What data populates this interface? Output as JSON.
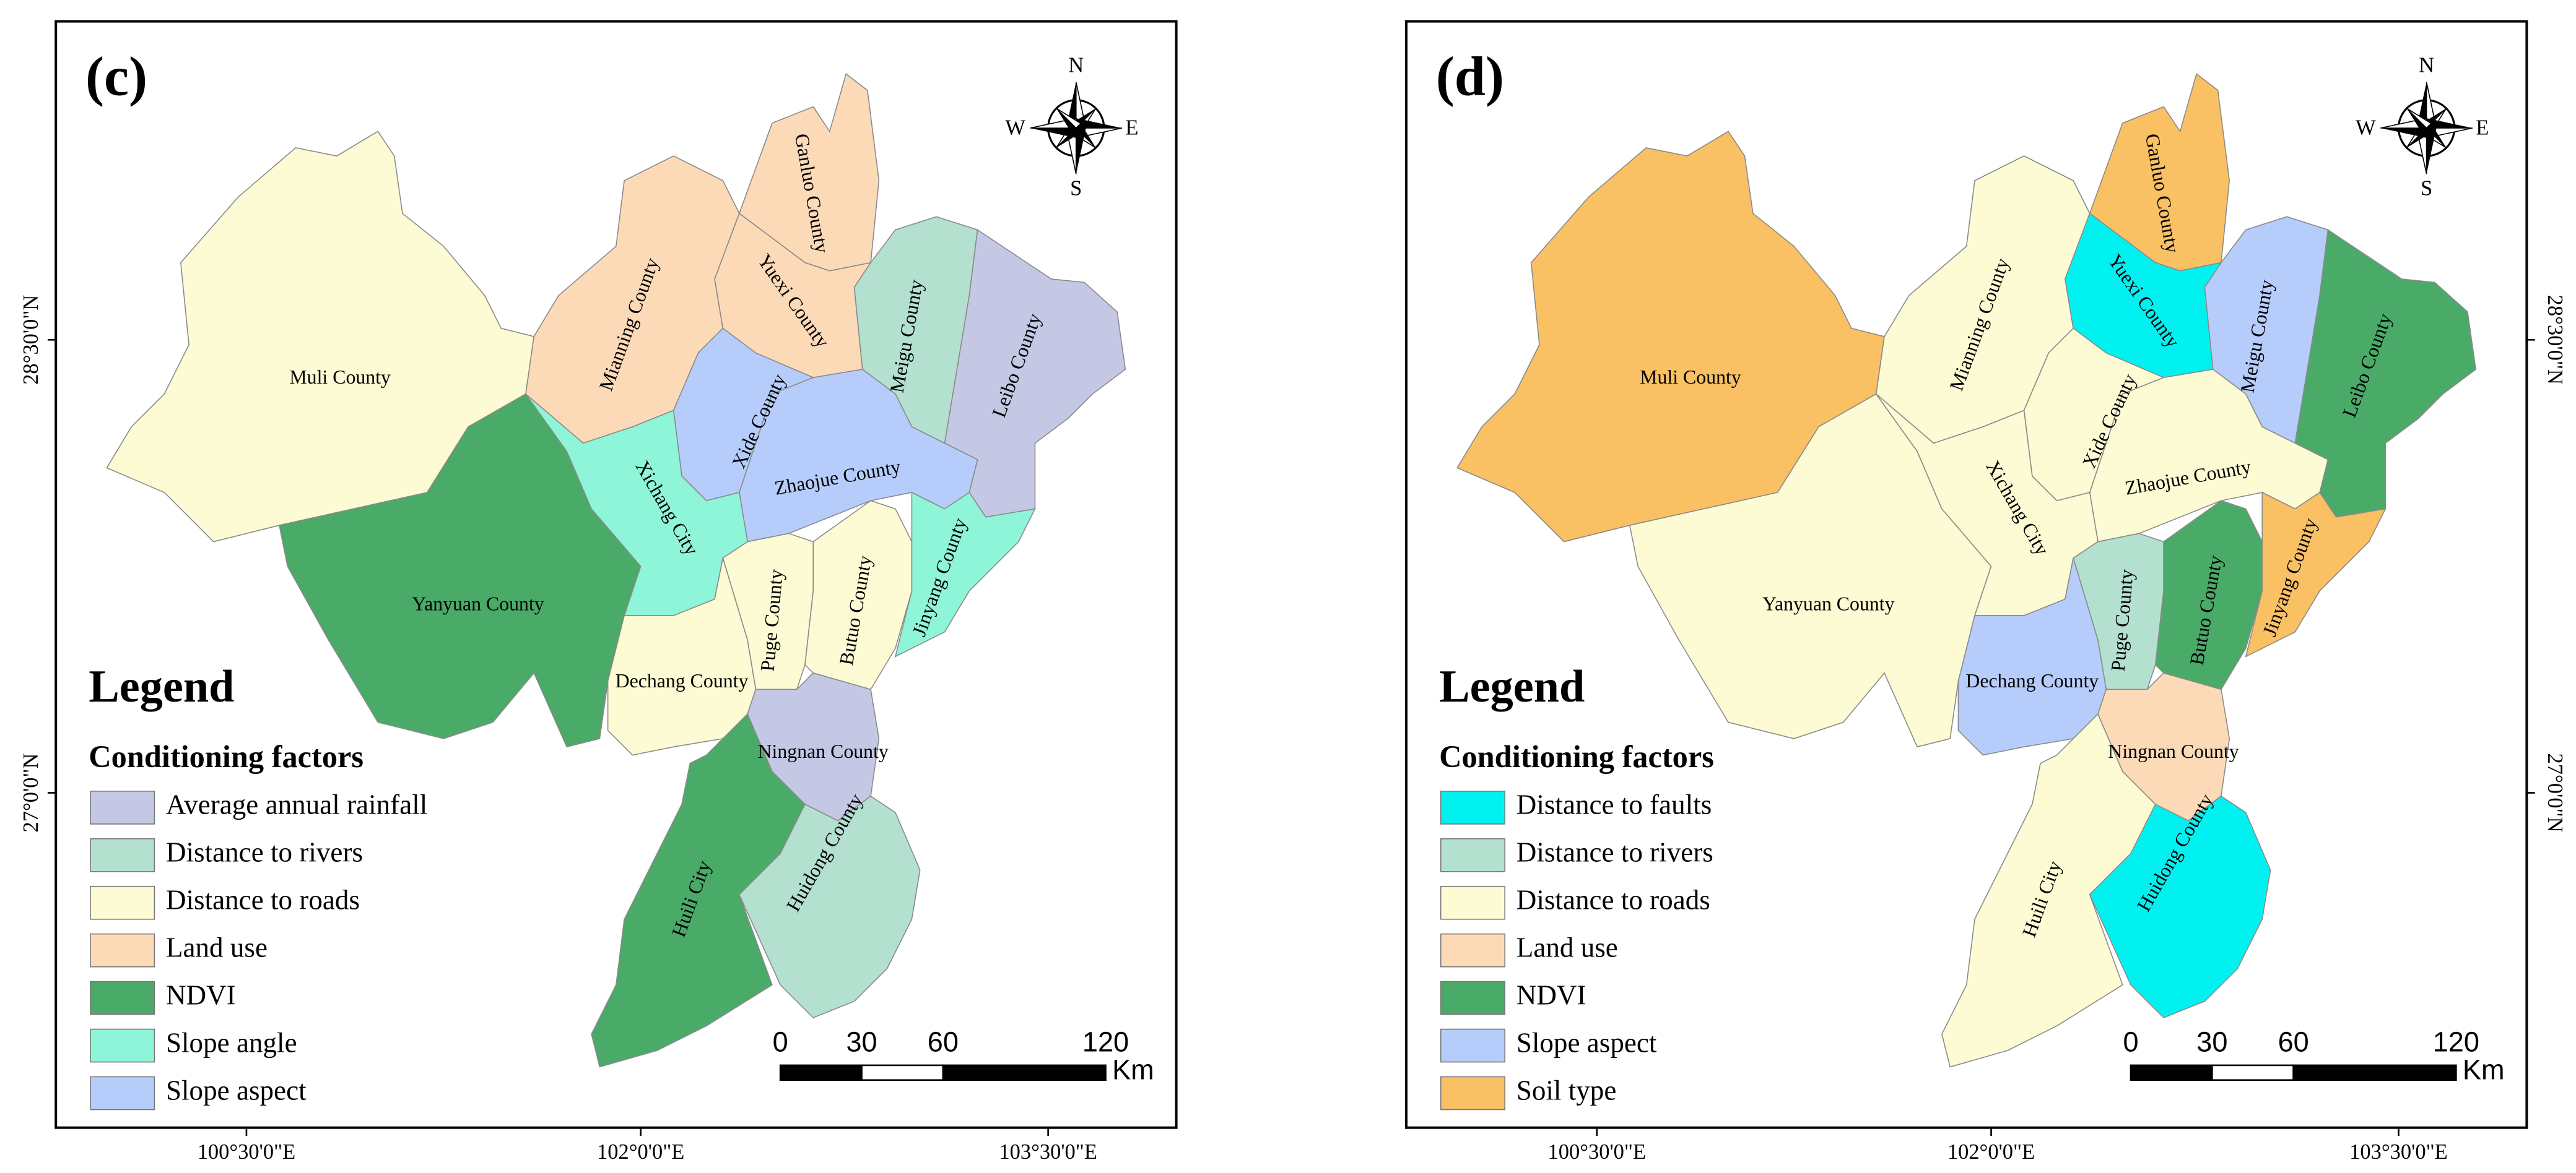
{
  "panels": [
    {
      "label": "(c)",
      "legend_title": "Legend",
      "legend_subtitle": "Conditioning factors",
      "legend": [
        {
          "name": "Average annual rainfall",
          "color": "#c5c8e4"
        },
        {
          "name": "Distance to rivers",
          "color": "#b3e0cf"
        },
        {
          "name": "Distance to roads",
          "color": "#fdfbd4"
        },
        {
          "name": "Land use",
          "color": "#fcdab8"
        },
        {
          "name": "NDVI",
          "color": "#4aaa68"
        },
        {
          "name": "Slope angle",
          "color": "#8ff5d8"
        },
        {
          "name": "Slope aspect",
          "color": "#b6cdfb"
        }
      ],
      "counties": [
        {
          "name": "Muli County",
          "color": "#fdfbd4"
        },
        {
          "name": "Yanyuan County",
          "color": "#4aaa68"
        },
        {
          "name": "Mianning County",
          "color": "#fcdab8"
        },
        {
          "name": "Ganluo County",
          "color": "#fcdab8"
        },
        {
          "name": "Yuexi County",
          "color": "#fcdab8"
        },
        {
          "name": "Meigu County",
          "color": "#b3e0cf"
        },
        {
          "name": "Leibo County",
          "color": "#c5c8e4"
        },
        {
          "name": "Xide County",
          "color": "#b6cdfb"
        },
        {
          "name": "Zhaojue County",
          "color": "#b6cdfb"
        },
        {
          "name": "Xichang City",
          "color": "#8ff5d8"
        },
        {
          "name": "Puge County",
          "color": "#fdfbd4"
        },
        {
          "name": "Butuo County",
          "color": "#fdfbd4"
        },
        {
          "name": "Jinyang County",
          "color": "#8ff5d8"
        },
        {
          "name": "Dechang County",
          "color": "#fdfbd4"
        },
        {
          "name": "Ningnan County",
          "color": "#c5c8e4"
        },
        {
          "name": "Huili City",
          "color": "#4aaa68"
        },
        {
          "name": "Huidong County",
          "color": "#b3e0cf"
        }
      ]
    },
    {
      "label": "(d)",
      "legend_title": "Legend",
      "legend_subtitle": "Conditioning factors",
      "legend": [
        {
          "name": "Distance to faults",
          "color": "#00f2f0"
        },
        {
          "name": "Distance to rivers",
          "color": "#b3e0cf"
        },
        {
          "name": "Distance to roads",
          "color": "#fdfbd4"
        },
        {
          "name": "Land use",
          "color": "#fcdab8"
        },
        {
          "name": "NDVI",
          "color": "#4aaa68"
        },
        {
          "name": "Slope aspect",
          "color": "#b6cdfb"
        },
        {
          "name": "Soil type",
          "color": "#f9c064"
        }
      ],
      "counties": [
        {
          "name": "Muli County",
          "color": "#f9c064"
        },
        {
          "name": "Yanyuan County",
          "color": "#fdfbd4"
        },
        {
          "name": "Mianning County",
          "color": "#fdfbd4"
        },
        {
          "name": "Ganluo County",
          "color": "#f9c064"
        },
        {
          "name": "Yuexi County",
          "color": "#00f2f0"
        },
        {
          "name": "Meigu County",
          "color": "#b6cdfb"
        },
        {
          "name": "Leibo County",
          "color": "#4aaa68"
        },
        {
          "name": "Xide County",
          "color": "#fdfbd4"
        },
        {
          "name": "Zhaojue County",
          "color": "#fdfbd4"
        },
        {
          "name": "Xichang City",
          "color": "#fdfbd4"
        },
        {
          "name": "Puge County",
          "color": "#b3e0cf"
        },
        {
          "name": "Butuo County",
          "color": "#4aaa68"
        },
        {
          "name": "Jinyang County",
          "color": "#f9c064"
        },
        {
          "name": "Dechang County",
          "color": "#b6cdfb"
        },
        {
          "name": "Ningnan County",
          "color": "#fcdab8"
        },
        {
          "name": "Huili City",
          "color": "#fdfbd4"
        },
        {
          "name": "Huidong County",
          "color": "#00f2f0"
        }
      ]
    }
  ],
  "compass": {
    "n": "N",
    "s": "S",
    "e": "E",
    "w": "W"
  },
  "scale_bar": {
    "ticks": [
      0,
      30,
      60,
      120
    ],
    "unit": "Km"
  },
  "x_labels": [
    "100°30'0\"E",
    "102°0'0\"E",
    "103°30'0\"E"
  ],
  "y_labels": [
    "28°30'0\"N",
    "27°0'0\"N"
  ]
}
